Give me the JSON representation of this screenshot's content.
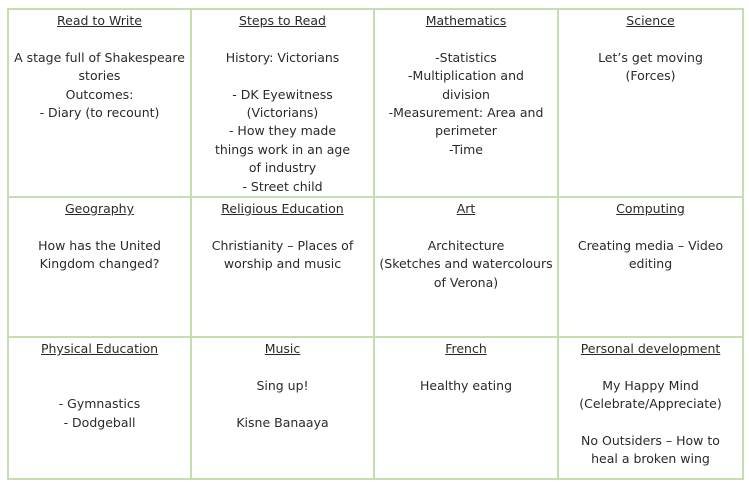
{
  "grid": {
    "border_color": "#c3deb0",
    "rows": [
      [
        {
          "heading": "Read to Write",
          "lines": [
            "",
            "A stage full of Shakespeare",
            "stories",
            "Outcomes:",
            "- Diary (to recount)"
          ]
        },
        {
          "heading": "Steps to Read",
          "lines": [
            "",
            "History: Victorians",
            "",
            "-   DK Eyewitness",
            "(Victorians)",
            "-   How they made",
            "things work in an age",
            "of industry",
            "-   Street child"
          ]
        },
        {
          "heading": "Mathematics",
          "lines": [
            "",
            "-Statistics",
            "-Multiplication and",
            "division",
            "-Measurement: Area and",
            "perimeter",
            "-Time"
          ]
        },
        {
          "heading": "Science",
          "lines": [
            "",
            "Let’s get moving",
            "(Forces)"
          ]
        }
      ],
      [
        {
          "heading": "Geography",
          "lines": [
            "",
            "How has the United",
            "Kingdom changed?"
          ]
        },
        {
          "heading": "Religious Education",
          "lines": [
            "",
            "Christianity – Places of",
            "worship and music"
          ]
        },
        {
          "heading": "Art",
          "lines": [
            "",
            "Architecture",
            "(Sketches and watercolours",
            "of Verona)"
          ]
        },
        {
          "heading": "Computing",
          "lines": [
            "",
            "Creating media – Video",
            "editing"
          ]
        }
      ],
      [
        {
          "heading": "Physical Education",
          "lines": [
            "",
            "",
            "-   Gymnastics",
            "-   Dodgeball"
          ]
        },
        {
          "heading": "Music",
          "lines": [
            "",
            "Sing up!",
            "",
            "Kisne Banaaya"
          ]
        },
        {
          "heading": "French",
          "lines": [
            "",
            "Healthy eating"
          ]
        },
        {
          "heading": "Personal development",
          "lines": [
            "",
            "My Happy Mind",
            "(Celebrate/Appreciate)",
            "",
            "No Outsiders – How to",
            "heal a broken wing"
          ]
        }
      ]
    ]
  }
}
